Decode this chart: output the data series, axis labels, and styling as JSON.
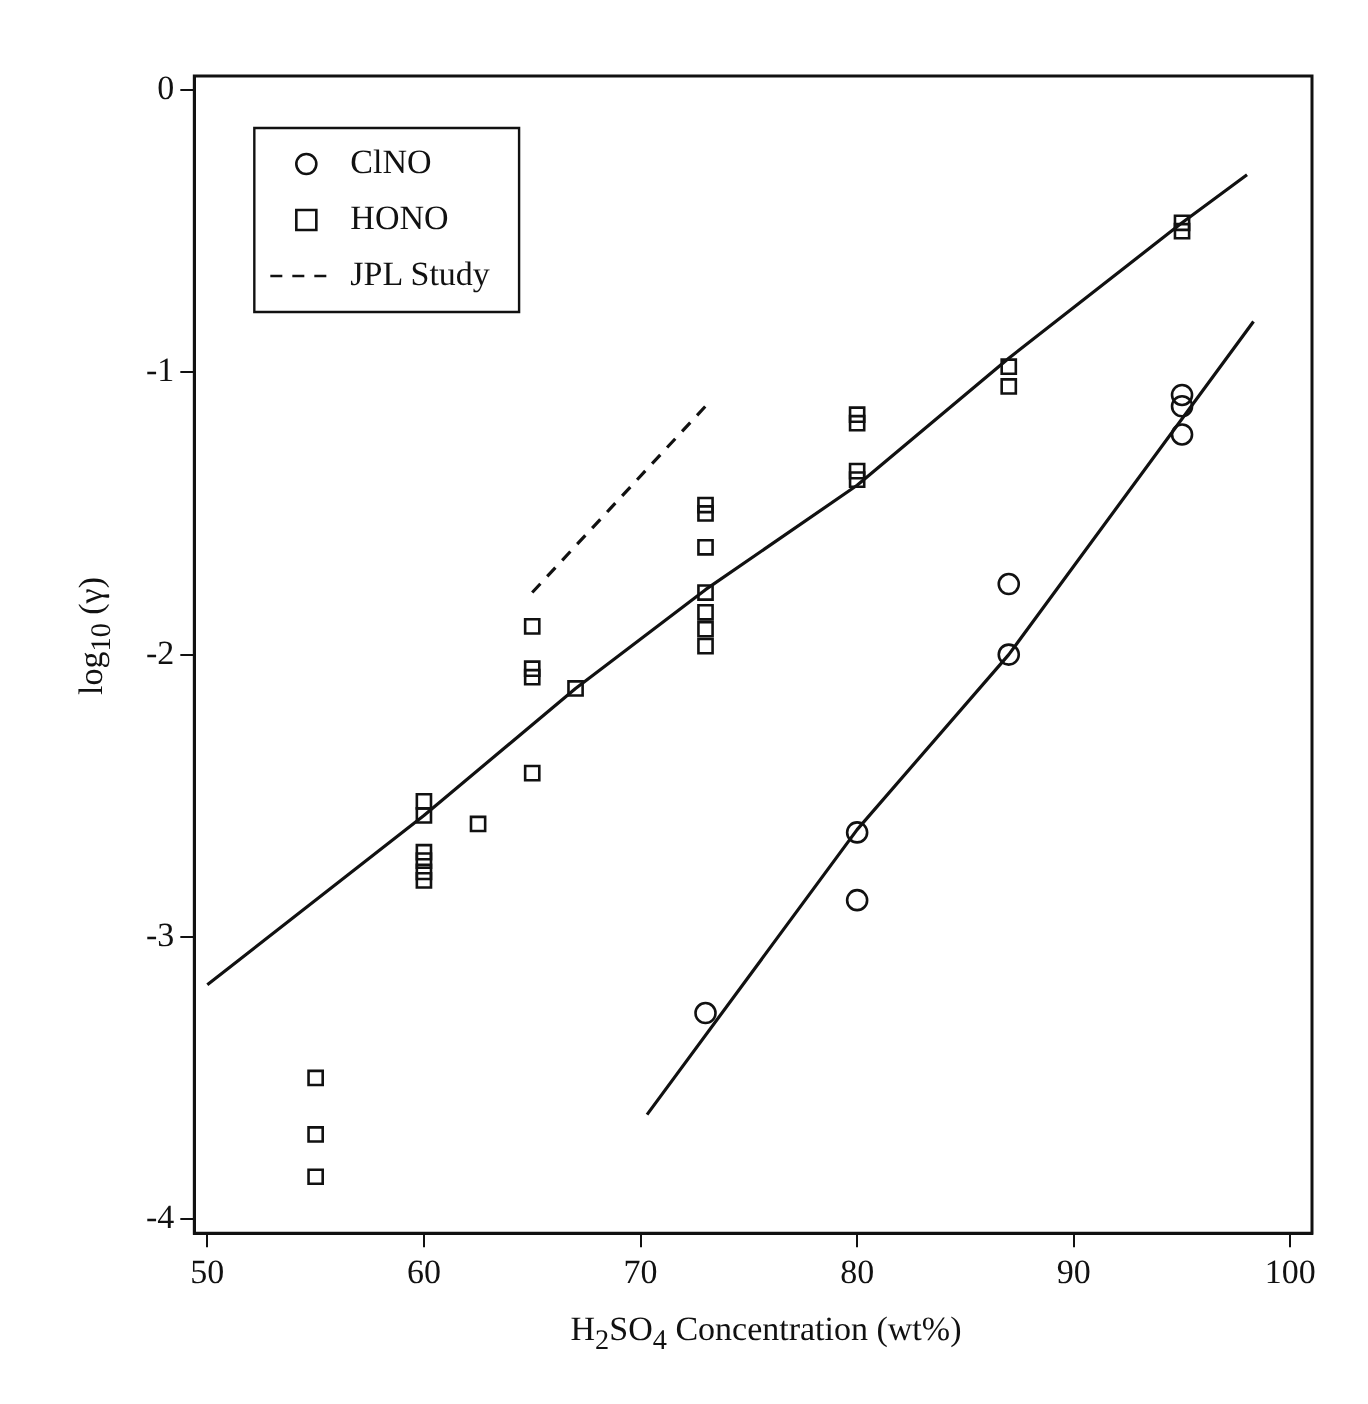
{
  "chart_data": {
    "type": "scatter",
    "xlabel": "H$_{2}$SO$_{4}$ Concentration (wt%)",
    "ylabel": "log$_{10}$ (γ)",
    "xlim": [
      49.4,
      101
    ],
    "ylim": [
      -4.05,
      0.05
    ],
    "xticks": [
      50,
      60,
      70,
      80,
      90,
      100
    ],
    "yticks": [
      0,
      -1,
      -2,
      -3,
      -4
    ],
    "grid": false,
    "legend": "top left",
    "series": [
      {
        "name": "ClNO",
        "type": "scatter",
        "marker": "circle",
        "color": "#111111",
        "x": [
          73,
          80,
          80,
          87,
          87,
          95,
          95,
          95
        ],
        "values": [
          -3.27,
          -2.63,
          -2.87,
          -1.75,
          -2.0,
          -1.08,
          -1.12,
          -1.22
        ]
      },
      {
        "name": "HONO",
        "type": "scatter",
        "marker": "square",
        "color": "#111111",
        "x": [
          55,
          55,
          55,
          60,
          60,
          60,
          60,
          60,
          60,
          62.5,
          65,
          65,
          65,
          65,
          67,
          73,
          73,
          73,
          73,
          73,
          73,
          73,
          80,
          80,
          80,
          80,
          87,
          87,
          95,
          95
        ],
        "values": [
          -3.5,
          -3.7,
          -3.85,
          -2.52,
          -2.57,
          -2.7,
          -2.73,
          -2.77,
          -2.8,
          -2.6,
          -1.9,
          -2.05,
          -2.08,
          -2.42,
          -2.12,
          -1.47,
          -1.5,
          -1.62,
          -1.78,
          -1.85,
          -1.91,
          -1.97,
          -1.15,
          -1.18,
          -1.35,
          -1.38,
          -0.98,
          -1.05,
          -0.47,
          -0.5
        ]
      },
      {
        "name": "JPL Study",
        "type": "line",
        "line_style": "dashed",
        "marker": "none",
        "color": "#111111",
        "x": [
          65,
          73
        ],
        "values": [
          -1.78,
          -1.12
        ]
      },
      {
        "type": "line",
        "line_style": "solid",
        "marker": "none",
        "color": "#111111",
        "x": [
          50,
          60,
          67,
          73,
          80,
          87,
          95,
          98
        ],
        "values": [
          -3.17,
          -2.57,
          -2.12,
          -1.77,
          -1.4,
          -0.95,
          -0.47,
          -0.3
        ]
      },
      {
        "type": "line",
        "line_style": "solid",
        "marker": "none",
        "color": "#111111",
        "x": [
          70.3,
          80,
          87,
          98.3
        ],
        "values": [
          -3.63,
          -2.62,
          -2.0,
          -0.82
        ]
      }
    ]
  }
}
